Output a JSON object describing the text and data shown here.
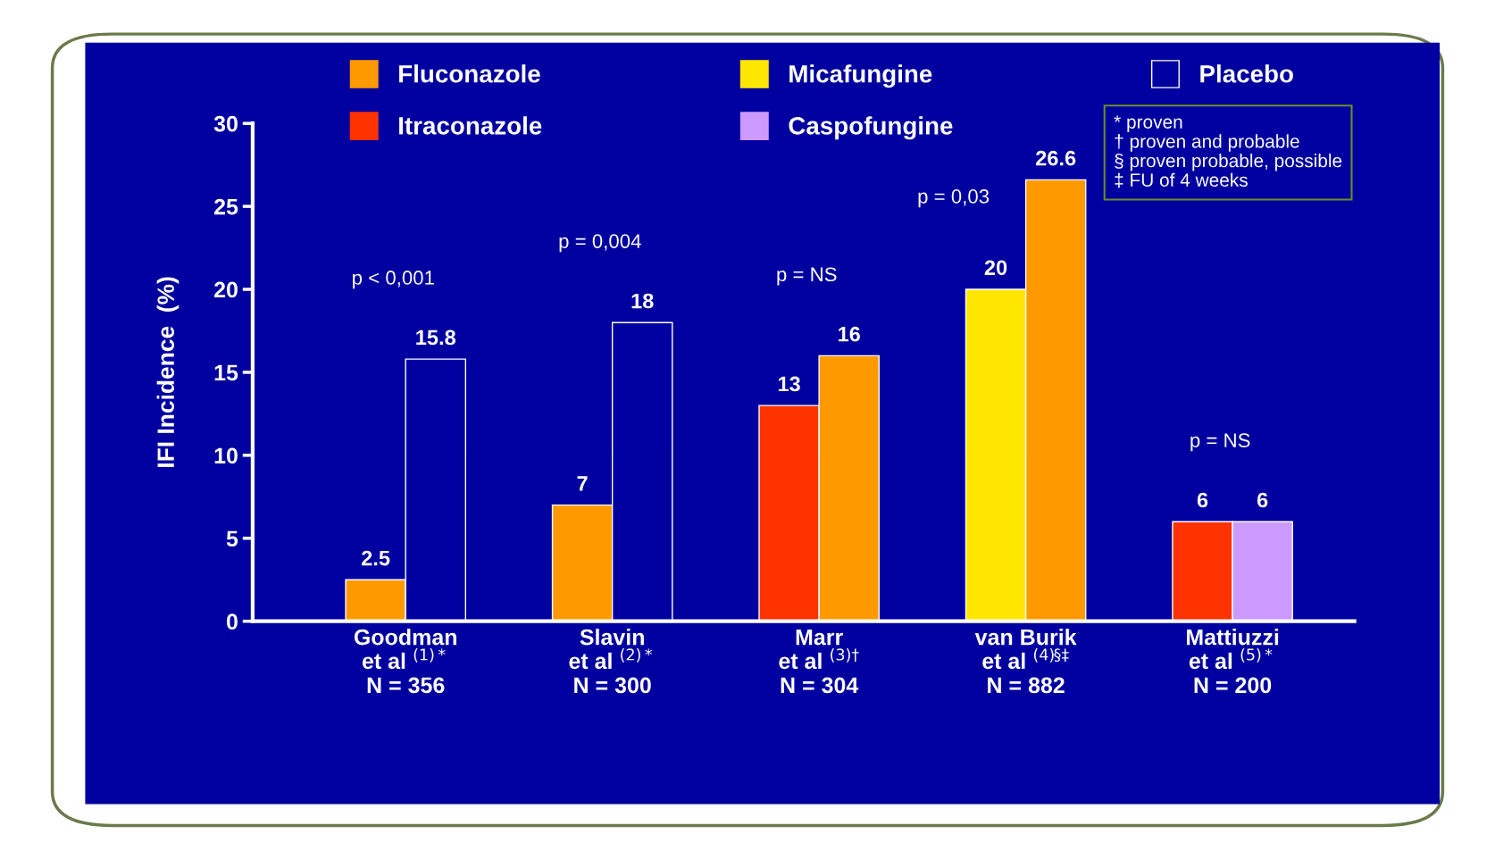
{
  "chart_data": {
    "type": "bar",
    "categories": [
      "Goodman\net al $^{(1)*}$\nN = 356",
      "Slavin\net al $^{(2)*}$\nN = 300",
      "Marr\net al $^{(3)†}$\nN = 304",
      "van Burik\net al $^{(4)§‡}$\nN = 882",
      "Mattiuzzi\net al $^{(5)*}$\nN = 200"
    ],
    "series": [
      {
        "name": "Micafungine",
        "color": "#ffe600",
        "values": [
          null,
          null,
          null,
          20,
          null
        ]
      },
      {
        "name": "Itraconazole",
        "color": "#ff3300",
        "values": [
          null,
          null,
          13,
          null,
          6
        ]
      },
      {
        "name": "Fluconazole",
        "color": "#ff9900",
        "values": [
          2.5,
          7,
          16,
          26.6,
          null
        ]
      },
      {
        "name": "Placebo",
        "color": "#0000a0",
        "values": [
          15.8,
          18,
          null,
          null,
          null
        ]
      },
      {
        "name": "Caspofungine",
        "color": "#cc99ff",
        "values": [
          null,
          null,
          null,
          null,
          6
        ]
      }
    ],
    "ylabel": "IFI Incidence  (%)",
    "ylim": [
      0,
      30
    ],
    "yticks": [
      0,
      5,
      10,
      15,
      20,
      25,
      30
    ],
    "data_labels": true,
    "legend": "top",
    "grid": false,
    "annotations": [
      "p < 0,001",
      "p = 0,004",
      "p = NS",
      "p = 0,03",
      "p = NS",
      "* proven\n† proven and probable\n§ proven probable, possible\n‡ FU of 4 weeks"
    ]
  }
}
